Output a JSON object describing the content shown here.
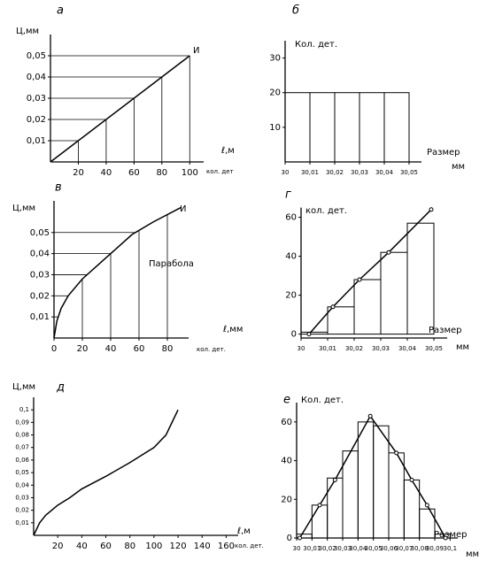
{
  "chart_data": [
    {
      "type": "line",
      "label": "а",
      "ylabel": "Ц,мм",
      "xlabel": "ℓ,м",
      "xlabel2": "кол. дет",
      "annotations": [
        "И"
      ],
      "color": "#000",
      "guides": true,
      "markers": false,
      "x": [
        0,
        100
      ],
      "y": [
        0,
        0.05
      ],
      "xlim": [
        0,
        110
      ],
      "ylim": [
        0,
        0.06
      ],
      "xticks": [
        20,
        40,
        60,
        80,
        100
      ],
      "yticks": [
        {
          "value": 0.01,
          "label": "0,01"
        },
        {
          "value": 0.02,
          "label": "0,02"
        },
        {
          "value": 0.03,
          "label": "0,03"
        },
        {
          "value": 0.04,
          "label": "0,04"
        },
        {
          "value": 0.05,
          "label": "0,05"
        }
      ]
    },
    {
      "type": "histogram",
      "label": "б",
      "ylabel": "Кол. дет.",
      "xlabel": "Размер",
      "xlabel2": "мм",
      "annotations": [],
      "color": "#000",
      "markers": false,
      "bins": [
        30,
        30.01,
        30.02,
        30.03,
        30.04,
        30.05
      ],
      "values": [
        20,
        20,
        20,
        20,
        20
      ],
      "xlim": [
        30,
        30.055
      ],
      "ylim": [
        0,
        35
      ],
      "xticks": [
        30,
        {
          "value": 30.01,
          "label": "30,01"
        },
        {
          "value": 30.02,
          "label": "30,02"
        },
        {
          "value": 30.03,
          "label": "30,03"
        },
        {
          "value": 30.04,
          "label": "30,04"
        },
        {
          "value": 30.05,
          "label": "30,05"
        }
      ],
      "yticks": [
        10,
        20,
        30
      ]
    },
    {
      "type": "line",
      "label": "в",
      "ylabel": "Ц,мм",
      "xlabel": "ℓ,мм",
      "xlabel2": "кол. дет.",
      "annotations": [
        "И",
        "Парабола"
      ],
      "color": "#000",
      "guides": true,
      "markers": false,
      "x": [
        0,
        2,
        5,
        10,
        20,
        30,
        40,
        55,
        70,
        90
      ],
      "y": [
        0,
        0.008,
        0.014,
        0.02,
        0.028,
        0.034,
        0.04,
        0.049,
        0.055,
        0.062
      ],
      "xlim": [
        0,
        95
      ],
      "ylim": [
        0,
        0.065
      ],
      "xticks": [
        0,
        20,
        40,
        60,
        80
      ],
      "yticks": [
        {
          "value": 0.01,
          "label": "0,01"
        },
        {
          "value": 0.02,
          "label": "0,02"
        },
        {
          "value": 0.03,
          "label": "0,03"
        },
        {
          "value": 0.04,
          "label": "0,04"
        },
        {
          "value": 0.05,
          "label": "0,05"
        }
      ]
    },
    {
      "type": "histogram",
      "label": "г",
      "ylabel": "кол. дет.",
      "xlabel": "Размер",
      "xlabel2": "мм",
      "annotations": [],
      "color": "#000",
      "markers": true,
      "bins": [
        30,
        30.01,
        30.02,
        30.03,
        30.04,
        30.05
      ],
      "values": [
        1,
        14,
        28,
        42,
        57
      ],
      "line": {
        "x": [
          30.003,
          30.012,
          30.022,
          30.033,
          30.049
        ],
        "y": [
          0,
          14,
          28,
          42,
          64
        ]
      },
      "xlim": [
        30,
        30.055
      ],
      "ylim": [
        -2,
        65
      ],
      "xticks": [
        30,
        {
          "value": 30.01,
          "label": "30,01"
        },
        {
          "value": 30.02,
          "label": "30,02"
        },
        {
          "value": 30.03,
          "label": "30,03"
        },
        {
          "value": 30.04,
          "label": "30,04"
        },
        {
          "value": 30.05,
          "label": "30,05"
        }
      ],
      "yticks": [
        0,
        20,
        40,
        60
      ]
    },
    {
      "type": "line",
      "label": "д",
      "ylabel": "Ц,мм",
      "xlabel": "ℓ,м",
      "xlabel2": "кол. дет.",
      "annotations": [],
      "color": "#000",
      "guides": false,
      "markers": false,
      "x": [
        0,
        5,
        10,
        20,
        30,
        40,
        60,
        80,
        100,
        110,
        115,
        120
      ],
      "y": [
        0,
        0.01,
        0.016,
        0.024,
        0.03,
        0.037,
        0.047,
        0.058,
        0.07,
        0.08,
        0.09,
        0.1
      ],
      "xlim": [
        0,
        170
      ],
      "ylim": [
        0,
        0.11
      ],
      "xticks": [
        20,
        40,
        60,
        80,
        100,
        120,
        140,
        160
      ],
      "yticks": [
        {
          "value": 0.01,
          "label": "0,01"
        },
        {
          "value": 0.02,
          "label": "0,02"
        },
        {
          "value": 0.03,
          "label": "0,03"
        },
        {
          "value": 0.04,
          "label": "0,04"
        },
        {
          "value": 0.05,
          "label": "0,05"
        },
        {
          "value": 0.06,
          "label": "0,06"
        },
        {
          "value": 0.07,
          "label": "0,07"
        },
        {
          "value": 0.08,
          "label": "0,08"
        },
        {
          "value": 0.09,
          "label": "0,09"
        },
        {
          "value": 0.1,
          "label": "0,1"
        }
      ]
    },
    {
      "type": "histogram",
      "label": "е",
      "ylabel": "Кол. дет.",
      "xlabel": "Размер",
      "xlabel2": "мм",
      "annotations": [],
      "color": "#000",
      "markers": true,
      "bins": [
        30,
        30.01,
        30.02,
        30.03,
        30.04,
        30.05,
        30.06,
        30.07,
        30.08,
        30.09,
        30.1
      ],
      "values": [
        2,
        17,
        31,
        45,
        60,
        58,
        44,
        30,
        15,
        2
      ],
      "line": {
        "x": [
          30.002,
          30.015,
          30.025,
          30.048,
          30.065,
          30.075,
          30.085,
          30.097
        ],
        "y": [
          0,
          17,
          30,
          63,
          44,
          30,
          17,
          0
        ]
      },
      "xlim": [
        30,
        30.105
      ],
      "ylim": [
        0,
        70
      ],
      "xticks": [
        30,
        {
          "value": 30.01,
          "label": "30,01"
        },
        {
          "value": 30.02,
          "label": "30,02"
        },
        {
          "value": 30.03,
          "label": "30,03"
        },
        {
          "value": 30.04,
          "label": "30,04"
        },
        {
          "value": 30.05,
          "label": "30,05"
        },
        {
          "value": 30.06,
          "label": "30,06"
        },
        {
          "value": 30.07,
          "label": "30,07"
        },
        {
          "value": 30.08,
          "label": "30,08"
        },
        {
          "value": 30.09,
          "label": "30,09"
        },
        {
          "value": 30.1,
          "label": "30,1"
        }
      ],
      "yticks": [
        0,
        20,
        40,
        60
      ]
    }
  ]
}
